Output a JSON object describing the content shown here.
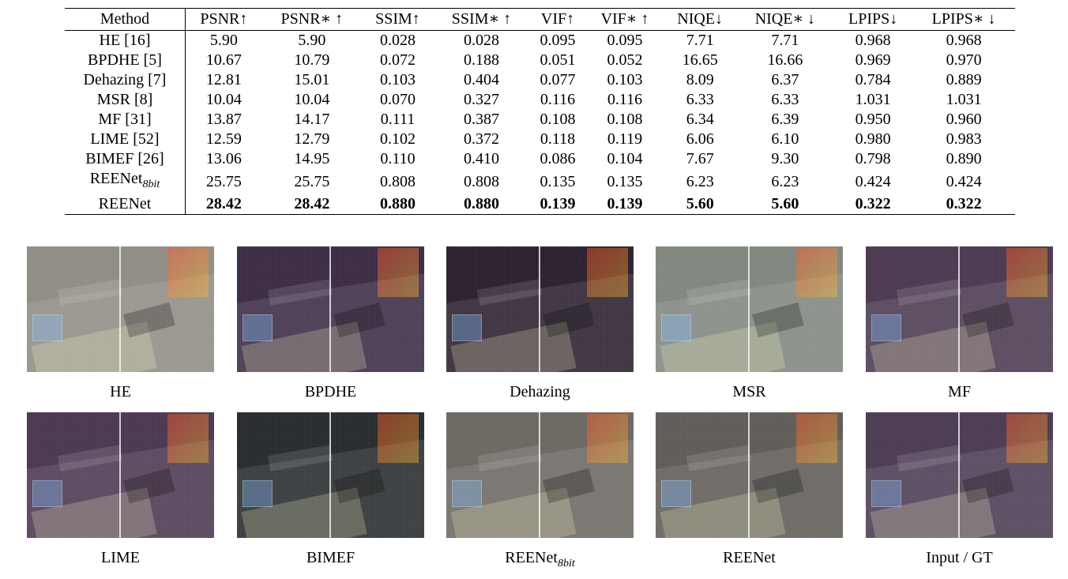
{
  "table": {
    "headers": [
      "Method",
      "PSNR↑",
      "PSNR∗ ↑",
      "SSIM↑",
      "SSIM∗ ↑",
      "VIF↑",
      "VIF∗ ↑",
      "NIQE↓",
      "NIQE∗ ↓",
      "LPIPS↓",
      "LPIPS∗ ↓"
    ],
    "rows": [
      {
        "method": "HE [16]",
        "values": [
          "5.90",
          "5.90",
          "0.028",
          "0.028",
          "0.095",
          "0.095",
          "7.71",
          "7.71",
          "0.968",
          "0.968"
        ]
      },
      {
        "method": "BPDHE [5]",
        "values": [
          "10.67",
          "10.79",
          "0.072",
          "0.188",
          "0.051",
          "0.052",
          "16.65",
          "16.66",
          "0.969",
          "0.970"
        ]
      },
      {
        "method": "Dehazing [7]",
        "values": [
          "12.81",
          "15.01",
          "0.103",
          "0.404",
          "0.077",
          "0.103",
          "8.09",
          "6.37",
          "0.784",
          "0.889"
        ]
      },
      {
        "method": "MSR [8]",
        "values": [
          "10.04",
          "10.04",
          "0.070",
          "0.327",
          "0.116",
          "0.116",
          "6.33",
          "6.33",
          "1.031",
          "1.031"
        ]
      },
      {
        "method": "MF [31]",
        "values": [
          "13.87",
          "14.17",
          "0.111",
          "0.387",
          "0.108",
          "0.108",
          "6.34",
          "6.39",
          "0.950",
          "0.960"
        ]
      },
      {
        "method": "LIME [52]",
        "values": [
          "12.59",
          "12.79",
          "0.102",
          "0.372",
          "0.118",
          "0.119",
          "6.06",
          "6.10",
          "0.980",
          "0.983"
        ]
      },
      {
        "method": "BIMEF [26]",
        "values": [
          "13.06",
          "14.95",
          "0.110",
          "0.410",
          "0.086",
          "0.104",
          "7.67",
          "9.30",
          "0.798",
          "0.890"
        ]
      },
      {
        "method": "REENet",
        "method_sub": "8bit",
        "values": [
          "25.75",
          "25.75",
          "0.808",
          "0.808",
          "0.135",
          "0.135",
          "6.23",
          "6.23",
          "0.424",
          "0.424"
        ]
      },
      {
        "method": "REENet",
        "values": [
          "28.42",
          "28.42",
          "0.880",
          "0.880",
          "0.139",
          "0.139",
          "5.60",
          "5.60",
          "0.322",
          "0.322"
        ],
        "bold": true
      }
    ]
  },
  "figures": [
    {
      "caption": "HE",
      "tone": "#8f8c84"
    },
    {
      "caption": "BPDHE",
      "tone": "#3a2a44"
    },
    {
      "caption": "Dehazing",
      "tone": "#2a1f2c"
    },
    {
      "caption": "MSR",
      "tone": "#7f867e"
    },
    {
      "caption": "MF",
      "tone": "#4a3850"
    },
    {
      "caption": "LIME",
      "tone": "#4a3650"
    },
    {
      "caption": "BIMEF",
      "tone": "#262a2c"
    },
    {
      "caption": "REENet",
      "caption_sub": "8bit",
      "tone": "#6a6660"
    },
    {
      "caption": "REENet",
      "tone": "#5e5b56"
    },
    {
      "caption": "Input / GT",
      "tone": "#4a3a52"
    }
  ]
}
